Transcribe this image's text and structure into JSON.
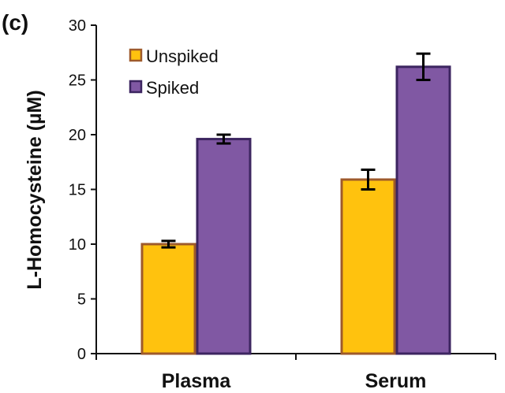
{
  "panel_label": "(c)",
  "chart_data": {
    "type": "bar",
    "title": "",
    "xlabel": "",
    "ylabel": "L-Homocysteine (µM)",
    "categories": [
      "Plasma",
      "Serum"
    ],
    "ylim": [
      0,
      30
    ],
    "yticks": [
      0,
      5,
      10,
      15,
      20,
      25,
      30
    ],
    "grid": false,
    "legend_position": "top-left",
    "series": [
      {
        "name": "Unspiked",
        "values": [
          10.0,
          15.9
        ],
        "errors": [
          0.3,
          0.9
        ],
        "fill": "#FFC20E",
        "stroke": "#9E5A2B"
      },
      {
        "name": "Spiked",
        "values": [
          19.6,
          26.2
        ],
        "errors": [
          0.4,
          1.2
        ],
        "fill": "#8058A3",
        "stroke": "#3C2560"
      }
    ]
  }
}
